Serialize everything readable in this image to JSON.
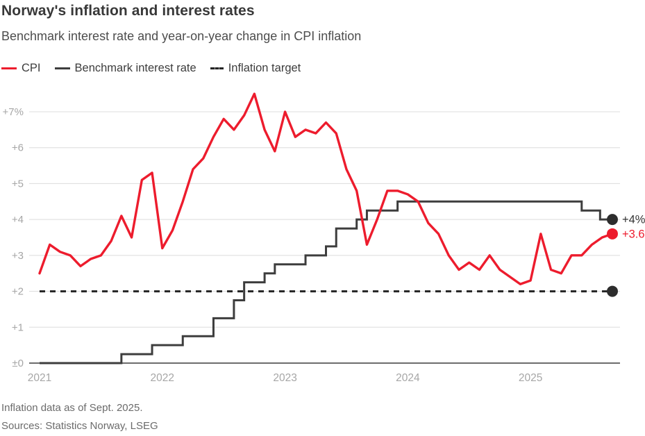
{
  "header": {
    "title": "Norway's inflation and interest rates",
    "subtitle": "Benchmark interest rate and year-on-year change in CPI inflation"
  },
  "legend": [
    {
      "id": "cpi",
      "label": "CPI",
      "color": "#ed1c2d",
      "style": "solid"
    },
    {
      "id": "rate",
      "label": "Benchmark interest rate",
      "color": "#3d3d3d",
      "style": "solid"
    },
    {
      "id": "target",
      "label": "Inflation target",
      "color": "#242424",
      "style": "dashed"
    }
  ],
  "footer": {
    "note": "Inflation data as of Sept. 2025.",
    "sources": "Sources: Statistics Norway, LSEG"
  },
  "chart_data": {
    "type": "line",
    "title": "Norway's inflation and interest rates",
    "subtitle": "Benchmark interest rate and year-on-year change in CPI inflation",
    "x_start": "2021-01",
    "x_end": "2025-09",
    "months_span": 56,
    "ylim": [
      0,
      7.6
    ],
    "grid": "horizontal",
    "legend_position": "top",
    "y_ticks": [
      {
        "label": "+7%",
        "value": 7
      },
      {
        "label": "+6",
        "value": 6
      },
      {
        "label": "+5",
        "value": 5
      },
      {
        "label": "+4",
        "value": 4
      },
      {
        "label": "+3",
        "value": 3
      },
      {
        "label": "+2",
        "value": 2
      },
      {
        "label": "+1",
        "value": 1
      },
      {
        "label": "±0",
        "value": 0
      }
    ],
    "x_ticks": [
      {
        "label": "2021",
        "month": 0
      },
      {
        "label": "2022",
        "month": 12
      },
      {
        "label": "2023",
        "month": 24
      },
      {
        "label": "2024",
        "month": 36
      },
      {
        "label": "2025",
        "month": 48
      }
    ],
    "series": [
      {
        "id": "cpi",
        "name": "CPI",
        "kind": "line",
        "color": "#ed1c2d",
        "end_label": "+3.6%",
        "values": [
          2.5,
          3.3,
          3.1,
          3.0,
          2.7,
          2.9,
          3.0,
          3.4,
          4.1,
          3.5,
          5.1,
          5.3,
          3.2,
          3.7,
          4.5,
          5.4,
          5.7,
          6.3,
          6.8,
          6.5,
          6.9,
          7.5,
          6.5,
          5.9,
          7.0,
          6.3,
          6.5,
          6.4,
          6.7,
          6.4,
          5.4,
          4.8,
          3.3,
          4.0,
          4.8,
          4.8,
          4.7,
          4.5,
          3.9,
          3.6,
          3.0,
          2.6,
          2.8,
          2.6,
          3.0,
          2.6,
          2.4,
          2.2,
          2.3,
          3.6,
          2.6,
          2.5,
          3.0,
          3.0,
          3.3,
          3.5,
          3.6
        ]
      },
      {
        "id": "rate",
        "name": "Benchmark interest rate",
        "kind": "step",
        "color": "#3d3d3d",
        "end_label": "+4%",
        "end_label_color": "#333333",
        "dot_color": "#2d2d2d",
        "steps": [
          [
            0,
            0
          ],
          [
            8,
            0.25
          ],
          [
            11,
            0.5
          ],
          [
            14,
            0.75
          ],
          [
            17,
            1.25
          ],
          [
            19,
            1.75
          ],
          [
            20,
            2.25
          ],
          [
            22,
            2.5
          ],
          [
            23,
            2.75
          ],
          [
            26,
            3.0
          ],
          [
            28,
            3.25
          ],
          [
            29,
            3.75
          ],
          [
            31,
            4.0
          ],
          [
            32,
            4.25
          ],
          [
            35,
            4.5
          ],
          [
            53,
            4.25
          ],
          [
            54.8,
            4.0
          ]
        ]
      },
      {
        "id": "target",
        "name": "Inflation target",
        "kind": "dashed-constant",
        "color": "#242424",
        "dot_color": "#2d2d2d",
        "value": 2
      }
    ]
  }
}
